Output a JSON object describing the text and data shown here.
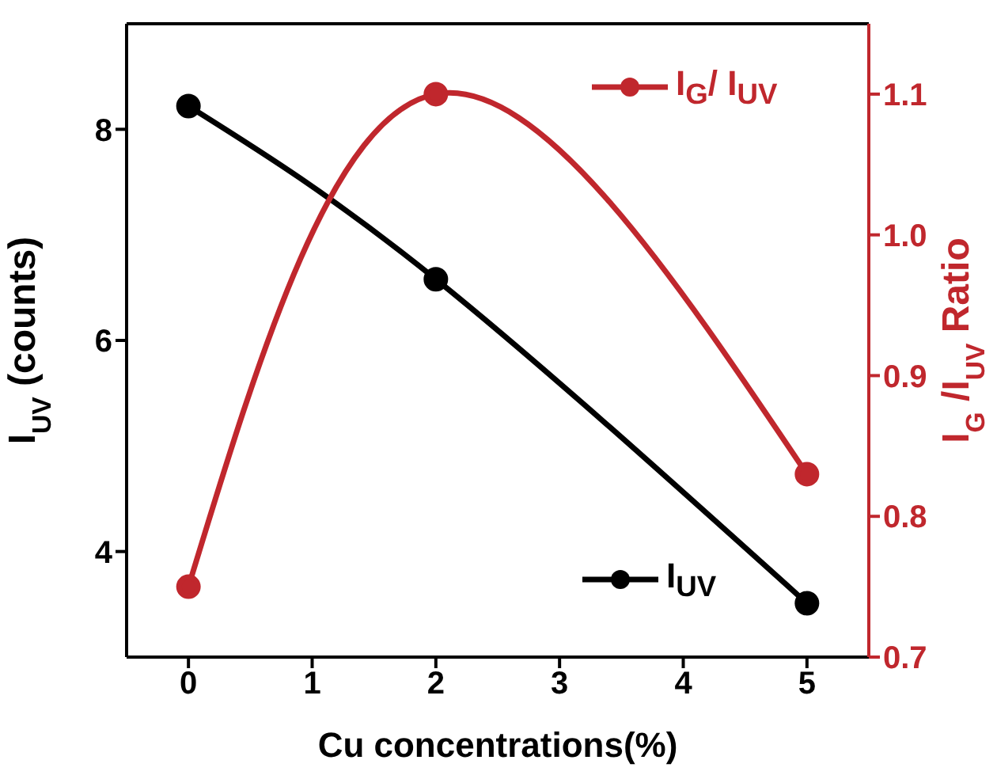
{
  "chart_data": {
    "type": "line",
    "xlabel": "Cu concentrations(%)",
    "ylabel": "I$_{UV}$ (counts)",
    "y2label": "I$_{G}$ /I$_{UV}$ Ratio",
    "x": [
      0,
      2,
      5
    ],
    "series": [
      {
        "name": "I$_{UV}$",
        "color": "#000000",
        "values": [
          8.22,
          6.58,
          3.51
        ]
      },
      {
        "name": "I$_{G}$/ I$_{UV}$",
        "color": "#c0272d",
        "values": [
          0.75,
          1.1,
          0.83
        ],
        "axis": "y2"
      }
    ],
    "xlim": [
      -0.5,
      5.5
    ],
    "xticks": [
      0,
      1,
      2,
      3,
      4,
      5
    ],
    "ylim": [
      3,
      9
    ],
    "yticks": [
      4,
      6,
      8
    ],
    "y2lim": [
      0.7,
      1.15
    ],
    "y2ticks": [
      0.7,
      0.8,
      0.9,
      {
        "value": 1.0,
        "label": "1.0"
      },
      1.1
    ],
    "marker": "circle",
    "line_style": "solid",
    "legend": "right",
    "grid": false
  }
}
